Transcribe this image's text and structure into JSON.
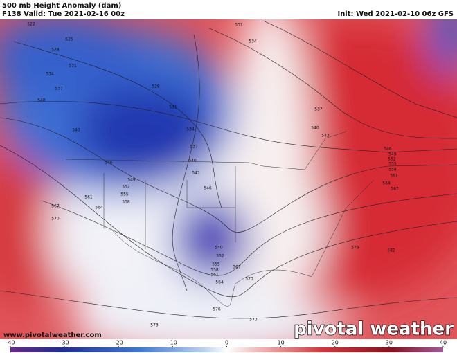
{
  "header": {
    "title": "500 mb Height Anomaly (dam)",
    "valid": "F138 Valid: Tue 2021-02-16 00z",
    "init": "Init: Wed 2021-02-10 06z GFS"
  },
  "map": {
    "contour_labels": [
      522,
      528,
      525,
      531,
      534,
      537,
      540,
      543,
      546,
      549,
      552,
      555,
      558,
      561,
      564,
      567,
      570,
      528,
      531,
      534,
      537,
      540,
      543,
      546,
      531,
      534,
      537,
      540,
      543,
      546,
      549,
      552,
      555,
      558,
      561,
      564,
      567,
      579,
      582,
      540,
      552,
      555,
      558,
      561,
      567,
      570,
      564,
      576,
      573,
      573
    ]
  },
  "footer": {
    "website": "www.pivotalweather.com",
    "logo": "pivotal weather"
  },
  "colorbar": {
    "ticks": [
      -40,
      -30,
      -20,
      -10,
      0,
      10,
      20,
      30,
      40
    ]
  }
}
